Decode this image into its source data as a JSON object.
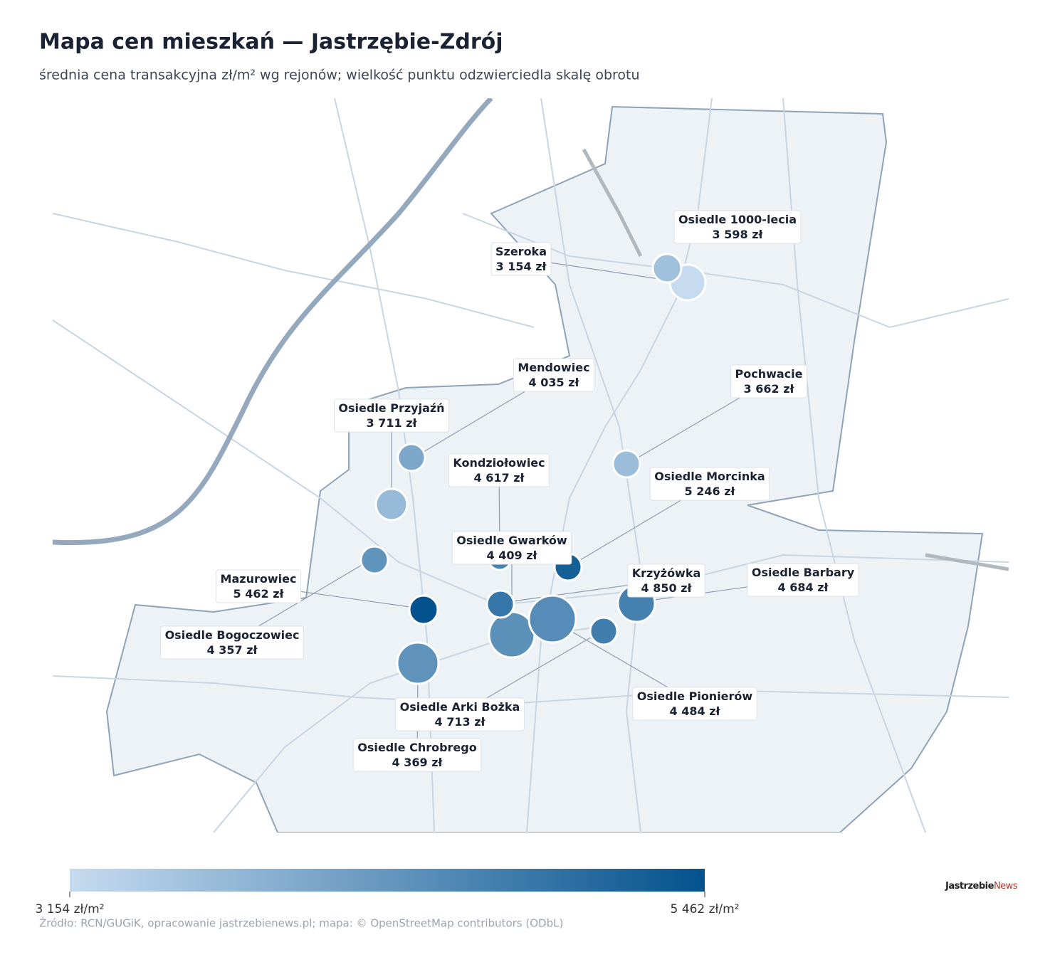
{
  "chart_data": {
    "type": "bubble_map",
    "title": "Mapa cen mieszkań — Jastrzębie-Zdrój",
    "subtitle": "średnia cena transakcyjna zł/m² wg rejonów; wielkość punktu odzwierciedla skalę obrotu",
    "points": [
      {
        "name": "Szeroka",
        "value": 3154,
        "value_label": "3 154 zł"
      },
      {
        "name": "Osiedle 1000-lecia",
        "value": 3598,
        "value_label": "3 598 zł"
      },
      {
        "name": "Mendowiec",
        "value": 4035,
        "value_label": "4 035 zł"
      },
      {
        "name": "Osiedle Przyjaźń",
        "value": 3711,
        "value_label": "3 711 zł"
      },
      {
        "name": "Pochwacie",
        "value": 3662,
        "value_label": "3 662 zł"
      },
      {
        "name": "Kondziołowiec",
        "value": 4617,
        "value_label": "4 617 zł"
      },
      {
        "name": "Osiedle Morcinka",
        "value": 5246,
        "value_label": "5 246 zł"
      },
      {
        "name": "Osiedle Gwarków",
        "value": 4409,
        "value_label": "4 409 zł"
      },
      {
        "name": "Krzyżówka",
        "value": 4850,
        "value_label": "4 850 zł"
      },
      {
        "name": "Osiedle Barbary",
        "value": 4684,
        "value_label": "4 684 zł"
      },
      {
        "name": "Mazurowiec",
        "value": 5462,
        "value_label": "5 462 zł"
      },
      {
        "name": "Osiedle Bogoczowiec",
        "value": 4357,
        "value_label": "4 357 zł"
      },
      {
        "name": "Osiedle Arki Bożka",
        "value": 4713,
        "value_label": "4 713 zł"
      },
      {
        "name": "Osiedle Pionierów",
        "value": 4484,
        "value_label": "4 484 zł"
      },
      {
        "name": "Osiedle Chrobrego",
        "value": 4369,
        "value_label": "4 369 zł"
      }
    ],
    "colorbar": {
      "min": {
        "value": 3154,
        "label": "3 154 zł/m²"
      },
      "max": {
        "value": 5462,
        "label": "5 462 zł/m²"
      },
      "colors": [
        "#c6dbef",
        "#03528e"
      ]
    },
    "source": "Źródło: RCN/GUGiK, opracowanie jastrzebienews.pl; mapa: © OpenStreetMap contributors (ODbL)",
    "logo": [
      "Jastrzebie",
      "News"
    ]
  }
}
